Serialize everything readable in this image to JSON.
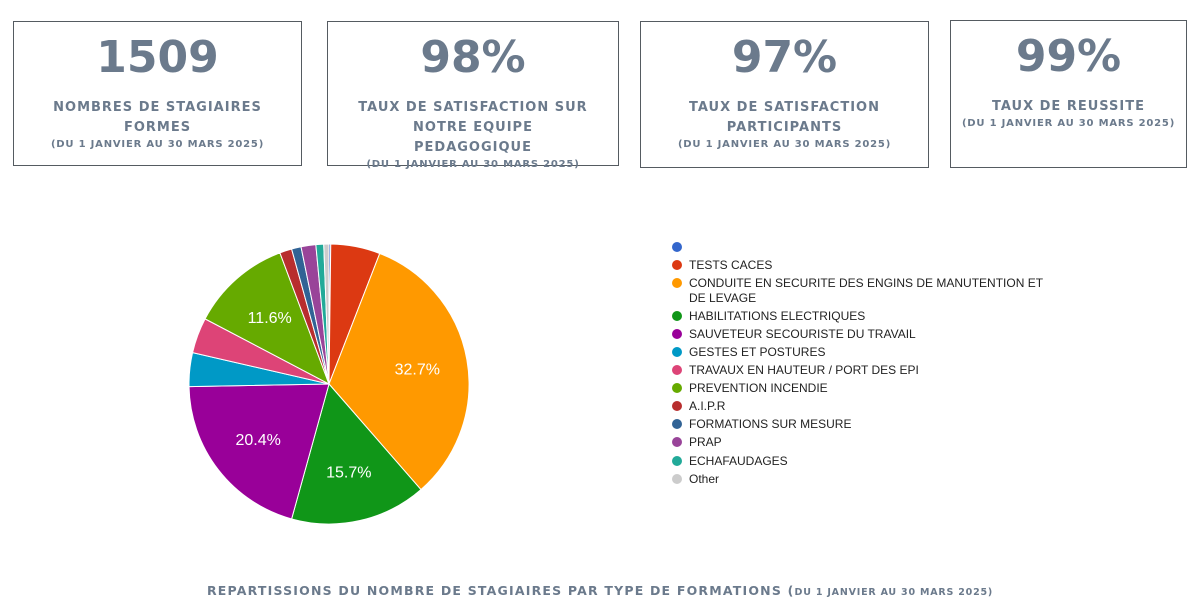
{
  "kpis": [
    {
      "value": "1509",
      "label": "NOMBRES DE STAGIAIRES FORMES",
      "sub": "(DU 1 JANVIER AU 30 MARS 2025)"
    },
    {
      "value": "98%",
      "label": "TAUX DE SATISFACTION SUR NOTRE EQUIPE PEDAGOGIQUE",
      "sub": "(DU 1 JANVIER AU 30 MARS 2025)"
    },
    {
      "value": "97%",
      "label": "TAUX DE SATISFACTION PARTICIPANTS",
      "sub": "(DU 1 JANVIER AU 30 MARS 2025)"
    },
    {
      "value": "99%",
      "label": "TAUX DE REUSSITE",
      "sub": "(DU 1 JANVIER AU 30 MARS 2025)"
    }
  ],
  "chart_data": {
    "type": "pie",
    "categories": [
      "",
      "TESTS CACES",
      "CONDUITE EN SECURITE DES ENGINS DE MANUTENTION ET DE LEVAGE",
      "HABILITATIONS ELECTRIQUES",
      "SAUVETEUR SECOURISTE DU TRAVAIL",
      "GESTES ET POSTURES",
      "TRAVAUX EN HAUTEUR / PORT DES EPI",
      "PREVENTION INCENDIE",
      "A.I.P.R",
      "FORMATIONS SUR MESURE",
      "PRAP",
      "ECHAFAUDAGES",
      "Other"
    ],
    "values": [
      0.2,
      5.7,
      32.7,
      15.7,
      20.4,
      3.9,
      4.1,
      11.6,
      1.4,
      1.1,
      1.7,
      0.9,
      0.6
    ],
    "colors": [
      "#3366cc",
      "#dc3912",
      "#ff9900",
      "#109618",
      "#990099",
      "#0099c6",
      "#dd4477",
      "#66aa00",
      "#b82e2e",
      "#316395",
      "#994499",
      "#22aa99",
      "#cccccc"
    ],
    "data_labels": [
      "",
      "",
      "32.7%",
      "15.7%",
      "20.4%",
      "",
      "",
      "11.6%",
      "",
      "",
      "",
      "",
      ""
    ],
    "legend_position": "right",
    "title": "",
    "caption_main": "REPARTISSIONS DU NOMBRE DE STAGIAIRES PAR TYPE DE FORMATIONS (",
    "caption_sub": "DU 1 JANVIER AU 30 MARS 2025)"
  }
}
